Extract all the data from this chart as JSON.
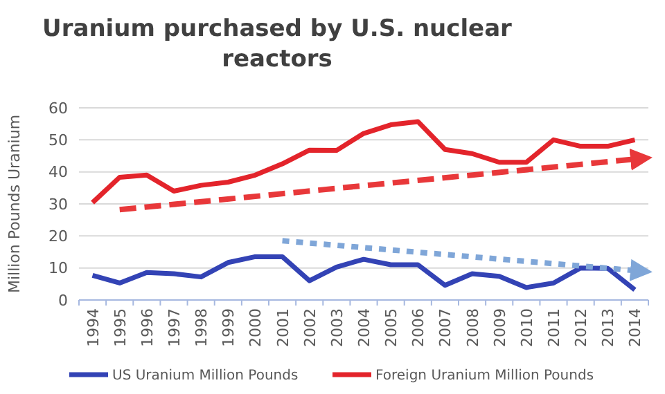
{
  "chart_data": {
    "type": "line",
    "title": "Uranium purchased by U.S. nuclear reactors",
    "ylabel": "Million Pounds Uranium",
    "categories": [
      "1994",
      "1995",
      "1996",
      "1997",
      "1998",
      "1999",
      "2000",
      "2001",
      "2002",
      "2003",
      "2004",
      "2005",
      "2006",
      "2007",
      "2008",
      "2009",
      "2010",
      "2011",
      "2012",
      "2013",
      "2014"
    ],
    "series": [
      {
        "name": "US Uranium Million Pounds",
        "color": "#3343b5",
        "values": [
          7.7,
          5.3,
          8.6,
          8.2,
          7.2,
          11.7,
          13.5,
          13.5,
          6,
          10.3,
          12.7,
          11,
          11,
          4.6,
          8.2,
          7.4,
          3.9,
          5.3,
          10,
          9.9,
          3.2
        ]
      },
      {
        "name": "Foreign Uranium Million Pounds",
        "color": "#e3242b",
        "values": [
          30.4,
          38.3,
          39,
          34,
          35.8,
          36.8,
          39,
          42.5,
          46.8,
          46.7,
          52,
          54.7,
          55.7,
          47,
          45.7,
          43,
          43,
          50,
          48,
          48,
          50
        ]
      },
      {
        "type": "line",
        "color": "#e8383a",
        "values": [
          null,
          28.2,
          null,
          null,
          null,
          null,
          null,
          null,
          null,
          null,
          null,
          null,
          null,
          null,
          null,
          null,
          null,
          null,
          null,
          null,
          44
        ],
        "line_style": "dashed"
      },
      {
        "type": "line",
        "color": "#7fa6d8",
        "values": [
          null,
          null,
          null,
          null,
          null,
          null,
          null,
          18.5,
          null,
          null,
          null,
          null,
          null,
          null,
          null,
          null,
          null,
          null,
          null,
          null,
          9.2
        ],
        "line_style": "dotted"
      }
    ],
    "ylim": [
      0,
      60
    ],
    "yticks": [
      0,
      10,
      20,
      30,
      40,
      50,
      60
    ],
    "grid": "y",
    "legend": "bottom"
  }
}
